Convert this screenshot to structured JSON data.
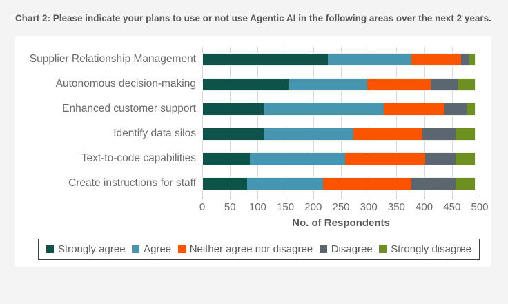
{
  "title": "Chart 2: Please indicate your plans to use or not use Agentic AI in the following areas over the next 2 years.",
  "colors": {
    "page_background": "#f4f4f4",
    "card_background": "#ffffff",
    "gridline": "#dadada",
    "text_muted": "#6b6b6b",
    "text_strong": "#595959"
  },
  "chart_data": {
    "type": "bar",
    "orientation": "horizontal",
    "stacked": true,
    "grid": true,
    "legend_position": "bottom",
    "xlabel": "No. of Respondents",
    "xlim": [
      0,
      500
    ],
    "xticks": [
      0,
      50,
      100,
      150,
      200,
      250,
      300,
      350,
      400,
      450,
      500
    ],
    "categories": [
      "Supplier Relationship Management",
      "Autonomous decision-making",
      "Enhanced customer support",
      "Identify data silos",
      "Text-to-code capabilities",
      "Create instructions for staff"
    ],
    "series": [
      {
        "name": "Strongly agree",
        "color": "#0d5349",
        "values": [
          225,
          155,
          110,
          110,
          85,
          80
        ]
      },
      {
        "name": "Agree",
        "color": "#4696b1",
        "values": [
          150,
          140,
          215,
          160,
          170,
          135
        ]
      },
      {
        "name": "Neither agree nor disagree",
        "color": "#fa5400",
        "values": [
          90,
          115,
          110,
          125,
          145,
          160
        ]
      },
      {
        "name": "Disagree",
        "color": "#5c6670",
        "values": [
          15,
          50,
          40,
          60,
          55,
          80
        ]
      },
      {
        "name": "Strongly disagree",
        "color": "#6d9021",
        "values": [
          10,
          30,
          15,
          35,
          35,
          35
        ]
      }
    ]
  }
}
